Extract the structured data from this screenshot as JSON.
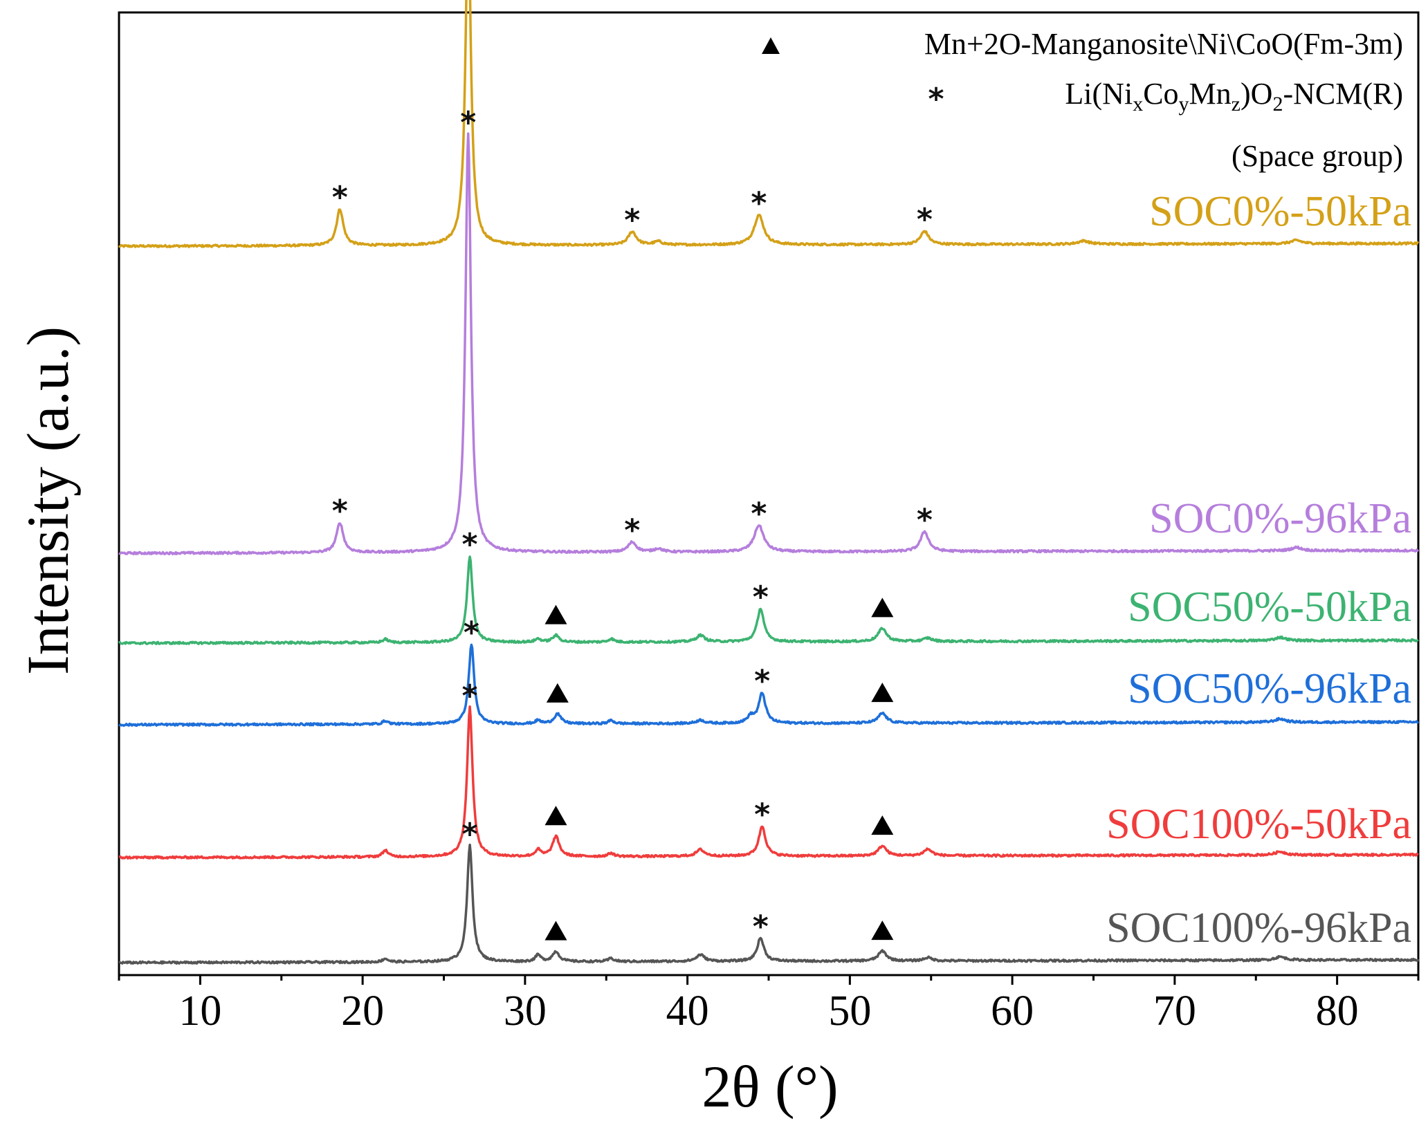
{
  "chart_data": {
    "type": "line",
    "title": "",
    "xlabel": "2θ (°)",
    "ylabel": "Intensity (a.u.)",
    "xlim": [
      5,
      85
    ],
    "xticks": [
      10,
      20,
      30,
      40,
      50,
      60,
      70,
      80
    ],
    "yticks_shown": false,
    "legend": {
      "placement": "top-right",
      "entries": [
        {
          "symbol": "▲",
          "label": "Mn+2O-Manganosite\\Ni\\CoO(Fm-3m)"
        },
        {
          "symbol": "*",
          "label_parts": [
            "Li(Ni",
            "x",
            "Co",
            "y",
            "Mn",
            "z",
            ")O",
            "2",
            "-NCM(R)"
          ]
        },
        {
          "symbol": "",
          "label": "(Space group)"
        }
      ]
    },
    "series": [
      {
        "name": "SOC0%-50kPa",
        "color": "#D4A017",
        "baseline": 0,
        "peaks": [
          {
            "x": 18.6,
            "h": 0.11,
            "w": 0.25,
            "marker": "*"
          },
          {
            "x": 26.5,
            "h": 1.0,
            "w": 0.2,
            "marker": "*"
          },
          {
            "x": 36.6,
            "h": 0.04,
            "w": 0.3,
            "marker": "*"
          },
          {
            "x": 38.2,
            "h": 0.01,
            "w": 0.3
          },
          {
            "x": 44.4,
            "h": 0.09,
            "w": 0.35,
            "marker": "*"
          },
          {
            "x": 54.6,
            "h": 0.04,
            "w": 0.3,
            "marker": "*"
          },
          {
            "x": 64.4,
            "h": 0.01,
            "w": 0.4
          },
          {
            "x": 77.5,
            "h": 0.01,
            "w": 0.4
          }
        ]
      },
      {
        "name": "SOC0%-96kPa",
        "color": "#B57EDC",
        "baseline": 0,
        "peaks": [
          {
            "x": 18.6,
            "h": 0.09,
            "w": 0.25,
            "marker": "*"
          },
          {
            "x": 26.5,
            "h": 1.26,
            "w": 0.2,
            "marker": "*"
          },
          {
            "x": 36.6,
            "h": 0.03,
            "w": 0.3,
            "marker": "*"
          },
          {
            "x": 38.2,
            "h": 0.01,
            "w": 0.3
          },
          {
            "x": 44.4,
            "h": 0.08,
            "w": 0.35,
            "marker": "*"
          },
          {
            "x": 54.6,
            "h": 0.06,
            "w": 0.3,
            "marker": "*"
          },
          {
            "x": 77.5,
            "h": 0.01,
            "w": 0.4
          }
        ]
      },
      {
        "name": "SOC50%-50kPa",
        "color": "#3CB371",
        "baseline": 0,
        "peaks": [
          {
            "x": 21.4,
            "h": 0.01,
            "w": 0.2
          },
          {
            "x": 26.6,
            "h": 0.26,
            "w": 0.2,
            "marker": "*"
          },
          {
            "x": 30.8,
            "h": 0.01,
            "w": 0.2
          },
          {
            "x": 31.9,
            "h": 0.02,
            "w": 0.25,
            "marker": "▲"
          },
          {
            "x": 35.3,
            "h": 0.01,
            "w": 0.2
          },
          {
            "x": 40.8,
            "h": 0.02,
            "w": 0.3
          },
          {
            "x": 44.5,
            "h": 0.1,
            "w": 0.25,
            "marker": "*"
          },
          {
            "x": 52.0,
            "h": 0.04,
            "w": 0.3,
            "marker": "▲"
          },
          {
            "x": 54.8,
            "h": 0.01,
            "w": 0.3
          },
          {
            "x": 76.5,
            "h": 0.01,
            "w": 0.4
          }
        ]
      },
      {
        "name": "SOC50%-96kPa",
        "color": "#1E6FD9",
        "baseline": 0,
        "peaks": [
          {
            "x": 21.4,
            "h": 0.01,
            "w": 0.2
          },
          {
            "x": 26.7,
            "h": 0.24,
            "w": 0.2,
            "marker": "*"
          },
          {
            "x": 30.8,
            "h": 0.01,
            "w": 0.2
          },
          {
            "x": 32.0,
            "h": 0.03,
            "w": 0.25,
            "marker": "▲"
          },
          {
            "x": 35.3,
            "h": 0.01,
            "w": 0.2
          },
          {
            "x": 40.8,
            "h": 0.01,
            "w": 0.3
          },
          {
            "x": 43.9,
            "h": 0.02,
            "w": 0.25
          },
          {
            "x": 44.6,
            "h": 0.09,
            "w": 0.25,
            "marker": "*"
          },
          {
            "x": 52.0,
            "h": 0.03,
            "w": 0.3,
            "marker": "▲"
          },
          {
            "x": 76.5,
            "h": 0.01,
            "w": 0.4
          }
        ]
      },
      {
        "name": "SOC100%-50kPa",
        "color": "#F03C3C",
        "baseline": 0,
        "peaks": [
          {
            "x": 21.4,
            "h": 0.02,
            "w": 0.2
          },
          {
            "x": 26.6,
            "h": 0.45,
            "w": 0.2,
            "marker": "*"
          },
          {
            "x": 30.8,
            "h": 0.02,
            "w": 0.2
          },
          {
            "x": 31.9,
            "h": 0.06,
            "w": 0.25,
            "marker": "▲"
          },
          {
            "x": 35.3,
            "h": 0.01,
            "w": 0.2
          },
          {
            "x": 40.8,
            "h": 0.02,
            "w": 0.3
          },
          {
            "x": 44.6,
            "h": 0.09,
            "w": 0.25,
            "marker": "*"
          },
          {
            "x": 52.0,
            "h": 0.03,
            "w": 0.3,
            "marker": "▲"
          },
          {
            "x": 54.8,
            "h": 0.02,
            "w": 0.3
          },
          {
            "x": 76.5,
            "h": 0.01,
            "w": 0.4
          }
        ]
      },
      {
        "name": "SOC100%-96kPa",
        "color": "#555555",
        "baseline": 0,
        "peaks": [
          {
            "x": 21.4,
            "h": 0.01,
            "w": 0.2
          },
          {
            "x": 26.6,
            "h": 0.35,
            "w": 0.2,
            "marker": "*"
          },
          {
            "x": 30.8,
            "h": 0.02,
            "w": 0.2
          },
          {
            "x": 31.9,
            "h": 0.03,
            "w": 0.25,
            "marker": "▲"
          },
          {
            "x": 35.3,
            "h": 0.01,
            "w": 0.2
          },
          {
            "x": 40.8,
            "h": 0.02,
            "w": 0.3
          },
          {
            "x": 44.5,
            "h": 0.07,
            "w": 0.25,
            "marker": "*"
          },
          {
            "x": 52.0,
            "h": 0.03,
            "w": 0.3,
            "marker": "▲"
          },
          {
            "x": 54.8,
            "h": 0.01,
            "w": 0.3
          },
          {
            "x": 76.5,
            "h": 0.01,
            "w": 0.4
          }
        ]
      }
    ]
  }
}
